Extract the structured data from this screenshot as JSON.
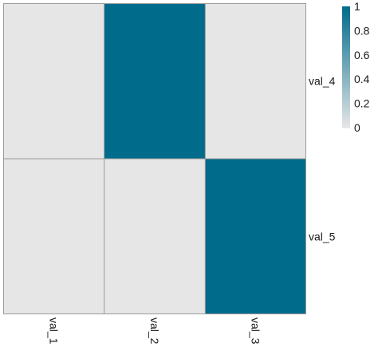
{
  "chart_data": {
    "type": "heatmap",
    "columns": [
      "val_1",
      "val_2",
      "val_3"
    ],
    "rows": [
      "val_4",
      "val_5"
    ],
    "values": [
      [
        0,
        1,
        0
      ],
      [
        0,
        0,
        1
      ]
    ],
    "colorbar": {
      "ticks": [
        0,
        0.2,
        0.4,
        0.6,
        0.8,
        1
      ],
      "tick_labels": [
        "0",
        "0.2",
        "0.4",
        "0.6",
        "0.8",
        "1"
      ],
      "range": [
        0,
        1
      ]
    },
    "colors": {
      "low": "#e6e6e6",
      "high": "#006b8b",
      "gridline": "#9a9a9a"
    },
    "legend_position": "top-right"
  }
}
